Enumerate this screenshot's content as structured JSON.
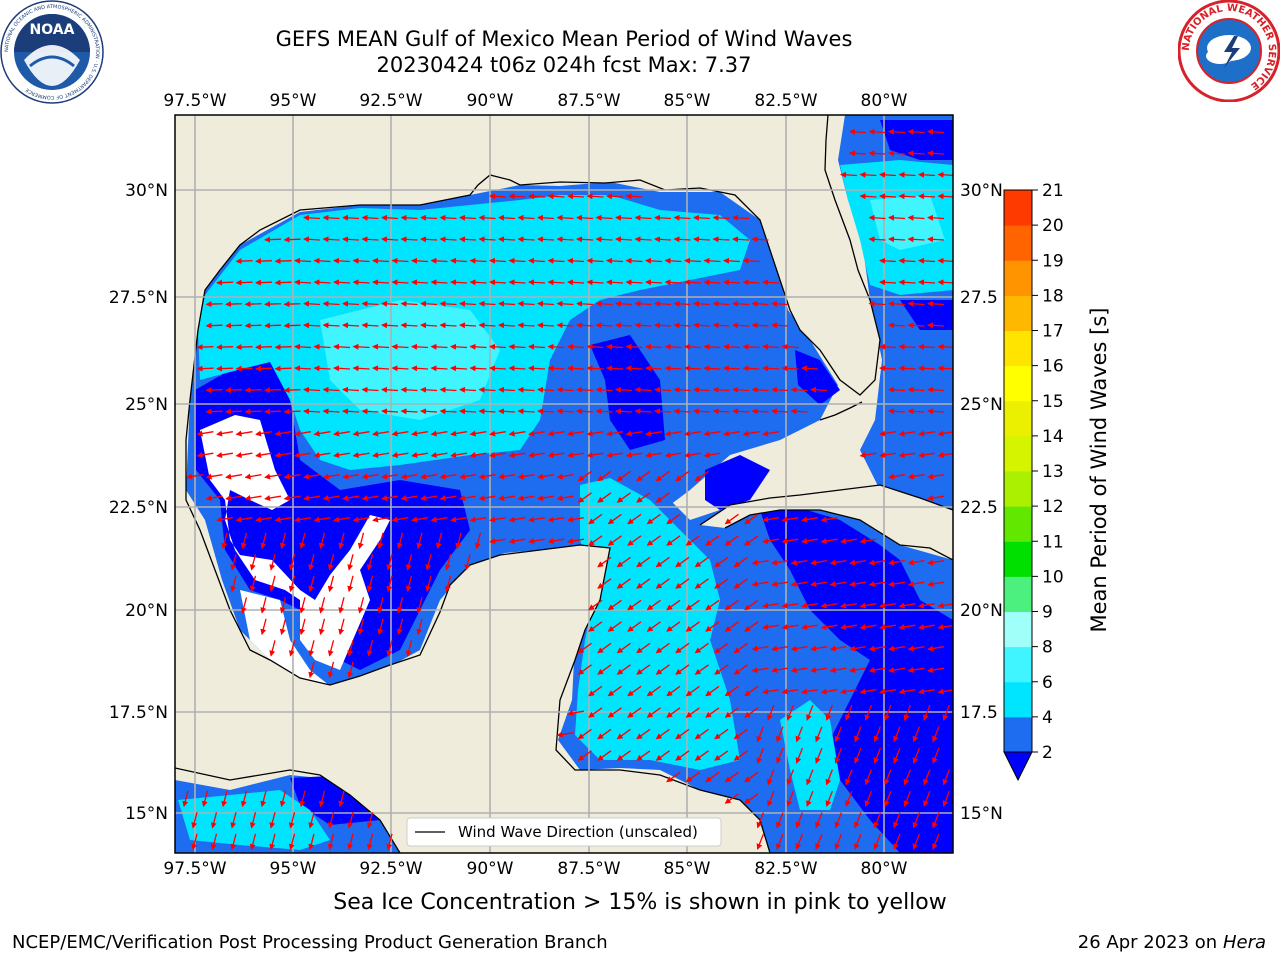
{
  "title": {
    "line1": "GEFS MEAN Gulf of Mexico Mean Period of Wind Waves",
    "line2": "20230424 t06z 024h fcst   Max: 7.37"
  },
  "map": {
    "lon_labels": [
      "97.5°W",
      "95°W",
      "92.5°W",
      "90°W",
      "87.5°W",
      "85°W",
      "82.5°W",
      "80°W"
    ],
    "lat_labels_left": [
      "30°N",
      "27.5°N",
      "25°N",
      "22.5°N",
      "20°N",
      "17.5°N",
      "15°N"
    ],
    "lat_labels_right": [
      "30°N",
      "27.5",
      "25°N",
      "22.5",
      "20°N",
      "17.5",
      "15°N"
    ],
    "legend": "Wind Wave Direction (unscaled)"
  },
  "colorbar": {
    "label": "Mean Period of Wind Waves [s]",
    "ticks": [
      "2",
      "4",
      "6",
      "8",
      "9",
      "10",
      "11",
      "12",
      "13",
      "14",
      "15",
      "16",
      "17",
      "18",
      "19",
      "20",
      "21"
    ],
    "colors": [
      "#1e6cf0",
      "#00e5ff",
      "#40f5ff",
      "#a0fff8",
      "#4cf07e",
      "#00e000",
      "#62e800",
      "#aaf000",
      "#d4f400",
      "#eaf000",
      "#ffff00",
      "#ffe400",
      "#ffb800",
      "#ff9400",
      "#ff6400",
      "#ff3a00",
      "#ff0000"
    ],
    "extend_color": "#0000ff"
  },
  "colors": {
    "land": "#efecdc",
    "shade_1": "#0000ff",
    "shade_2": "#1e6cf0",
    "shade_3": "#00e5ff",
    "shade_4": "#40f5ff",
    "arrow": "#ff0000",
    "grid": "#b0b0b0"
  },
  "logos": {
    "noaa": "NOAA",
    "noaa_ring": "NATIONAL OCEANIC AND ATMOSPHERIC ADMINISTRATION · U.S. DEPARTMENT OF COMMERCE",
    "nws_ring": "NATIONAL WEATHER SERVICE"
  },
  "note": "Sea Ice Concentration > 15% is shown in pink to yellow",
  "footer": {
    "left": "NCEP/EMC/Verification Post Processing Product Generation Branch",
    "right_date": "26 Apr 2023 on",
    "right_host": "Hera"
  }
}
